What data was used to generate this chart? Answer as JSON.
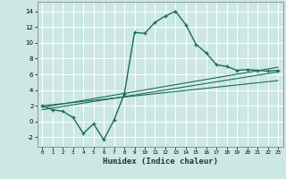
{
  "xlabel": "Humidex (Indice chaleur)",
  "background_color": "#cce8e4",
  "grid_color": "#ffffff",
  "line_color": "#1a6b5a",
  "xlim": [
    -0.5,
    23.5
  ],
  "ylim": [
    -3.2,
    15.2
  ],
  "xticks": [
    0,
    1,
    2,
    3,
    4,
    5,
    6,
    7,
    8,
    9,
    10,
    11,
    12,
    13,
    14,
    15,
    16,
    17,
    18,
    19,
    20,
    21,
    22,
    23
  ],
  "yticks": [
    -2,
    0,
    2,
    4,
    6,
    8,
    10,
    12,
    14
  ],
  "main_x": [
    0,
    1,
    2,
    3,
    4,
    5,
    6,
    7,
    8,
    9,
    10,
    11,
    12,
    13,
    14,
    15,
    16,
    17,
    18,
    19,
    20,
    21,
    22,
    23
  ],
  "main_y": [
    2.0,
    1.5,
    1.3,
    0.5,
    -1.5,
    -0.3,
    -2.3,
    0.2,
    3.5,
    11.3,
    11.2,
    12.6,
    13.4,
    14.0,
    12.3,
    9.8,
    8.7,
    7.2,
    7.0,
    6.5,
    6.6,
    6.5,
    6.4,
    6.5
  ],
  "line1_x": [
    0,
    23
  ],
  "line1_y": [
    1.8,
    6.9
  ],
  "line2_x": [
    0,
    23
  ],
  "line2_y": [
    1.5,
    6.3
  ],
  "line3_x": [
    0,
    23
  ],
  "line3_y": [
    2.0,
    5.2
  ]
}
